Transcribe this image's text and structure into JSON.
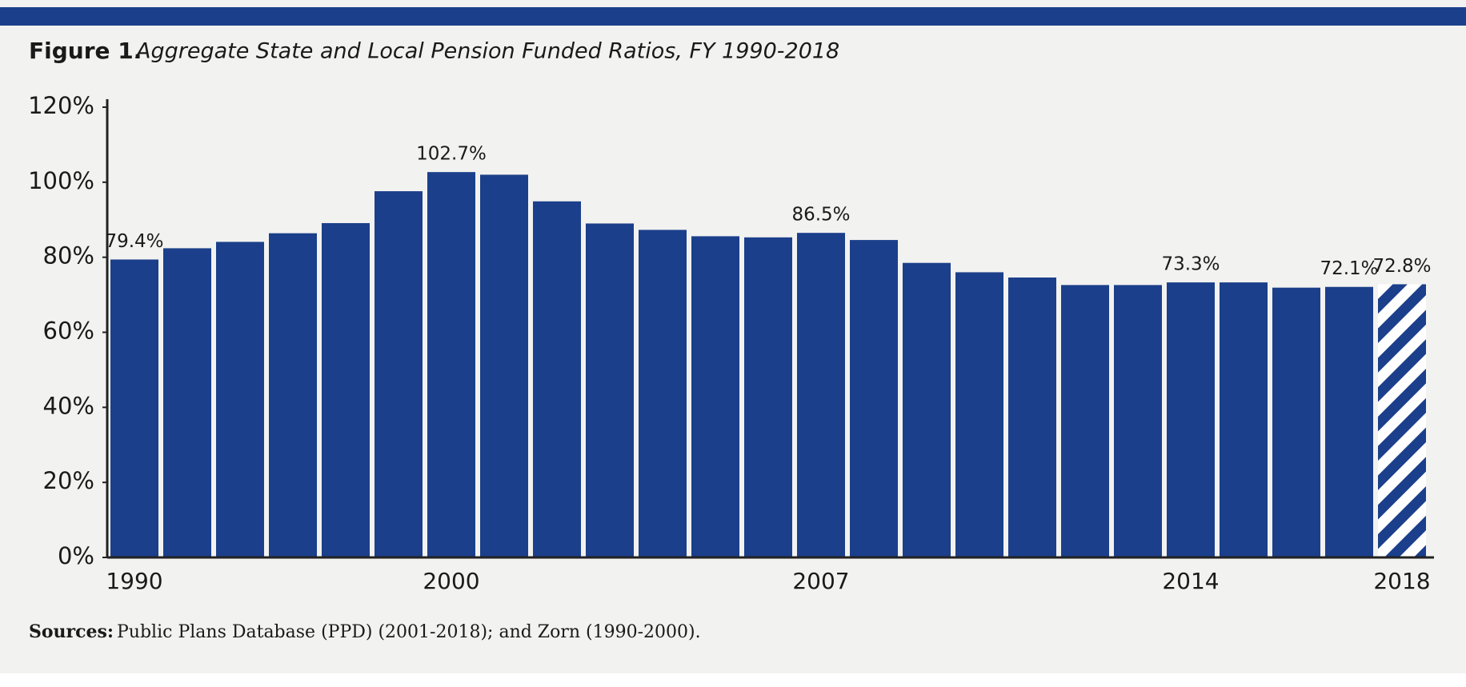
{
  "chart_data": {
    "type": "bar",
    "figure_label": "Figure 1.",
    "title": "Aggregate State and Local Pension Funded Ratios, FY 1990-2018",
    "categories": [
      "1990",
      null,
      null,
      null,
      null,
      null,
      "2000",
      null,
      null,
      null,
      null,
      null,
      null,
      "2007",
      null,
      null,
      null,
      null,
      null,
      null,
      "2014",
      null,
      null,
      null,
      "2018"
    ],
    "values": [
      79.4,
      82.4,
      84.1,
      86.4,
      89.1,
      97.6,
      102.7,
      102.0,
      94.9,
      89.0,
      87.3,
      85.6,
      85.3,
      86.5,
      84.6,
      78.5,
      76.0,
      74.6,
      72.6,
      72.6,
      73.3,
      73.3,
      71.9,
      72.1,
      72.8
    ],
    "value_labels": [
      "79.4%",
      null,
      null,
      null,
      null,
      null,
      "102.7%",
      null,
      null,
      null,
      null,
      null,
      null,
      "86.5%",
      null,
      null,
      null,
      null,
      null,
      null,
      "73.3%",
      null,
      null,
      "72.1%",
      "72.8%"
    ],
    "hatched": [
      24
    ],
    "color": "#1b3f8b",
    "ylim": [
      0,
      120
    ],
    "yticks": [
      {
        "value": 0,
        "label": "0%"
      },
      {
        "value": 20,
        "label": "20%"
      },
      {
        "value": 40,
        "label": "40%"
      },
      {
        "value": 60,
        "label": "60%"
      },
      {
        "value": 80,
        "label": "80%"
      },
      {
        "value": 100,
        "label": "100%"
      },
      {
        "value": 120,
        "label": "120%"
      }
    ],
    "source_label": "Sources:",
    "source": "Public Plans Database (PPD) (2001-2018); and Zorn (1990-2000)."
  }
}
